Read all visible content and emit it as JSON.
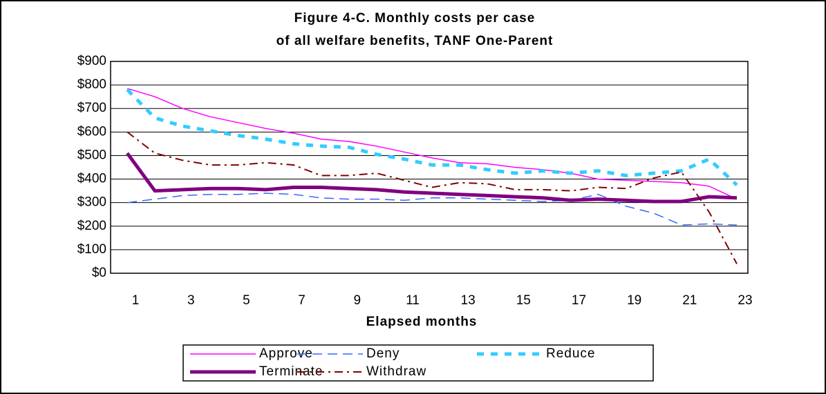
{
  "chart_data": {
    "type": "line",
    "title": [
      "Figure 4-C. Monthly costs per case",
      "of all welfare benefits, TANF One-Parent"
    ],
    "x_label": "Elapsed months",
    "categories": [
      "1",
      null,
      "3",
      null,
      "5",
      null,
      "7",
      null,
      "9",
      null,
      "11",
      null,
      "13",
      null,
      "15",
      null,
      "17",
      null,
      "19",
      null,
      "21",
      null,
      "23"
    ],
    "ylim": [
      0,
      900
    ],
    "yticks": [
      {
        "value": 0,
        "label": "$0"
      },
      {
        "value": 100,
        "label": "$100"
      },
      {
        "value": 200,
        "label": "$200"
      },
      {
        "value": 300,
        "label": "$300"
      },
      {
        "value": 400,
        "label": "$400"
      },
      {
        "value": 500,
        "label": "$500"
      },
      {
        "value": 600,
        "label": "$600"
      },
      {
        "value": 700,
        "label": "$700"
      },
      {
        "value": 800,
        "label": "$800"
      },
      {
        "value": 900,
        "label": "$900"
      }
    ],
    "grid": true,
    "series": [
      {
        "name": "Approve",
        "color": "#ff00ff",
        "style": "solid-thin",
        "values": [
          785,
          750,
          700,
          665,
          640,
          615,
          595,
          570,
          560,
          540,
          515,
          490,
          470,
          465,
          450,
          440,
          425,
          400,
          395,
          390,
          385,
          370,
          315
        ]
      },
      {
        "name": "Deny",
        "color": "#3366ff",
        "style": "dashed",
        "values": [
          300,
          315,
          330,
          335,
          335,
          340,
          335,
          320,
          315,
          315,
          310,
          320,
          320,
          315,
          310,
          305,
          310,
          335,
          285,
          255,
          205,
          210,
          205
        ]
      },
      {
        "name": "Reduce",
        "color": "#33ccff",
        "style": "dotted-thick",
        "values": [
          780,
          660,
          625,
          605,
          585,
          570,
          550,
          540,
          535,
          505,
          485,
          460,
          460,
          440,
          425,
          435,
          425,
          435,
          415,
          425,
          435,
          485,
          375
        ]
      },
      {
        "name": "Terminate",
        "color": "#800080",
        "style": "solid-thick",
        "values": [
          510,
          350,
          355,
          360,
          360,
          355,
          365,
          365,
          360,
          355,
          345,
          340,
          335,
          330,
          325,
          320,
          310,
          315,
          310,
          305,
          305,
          325,
          320
        ]
      },
      {
        "name": "Withdraw",
        "color": "#800000",
        "style": "dash-dot",
        "values": [
          600,
          510,
          480,
          460,
          460,
          470,
          460,
          415,
          415,
          425,
          395,
          365,
          385,
          380,
          355,
          355,
          350,
          365,
          360,
          405,
          430,
          260,
          40
        ]
      }
    ]
  }
}
